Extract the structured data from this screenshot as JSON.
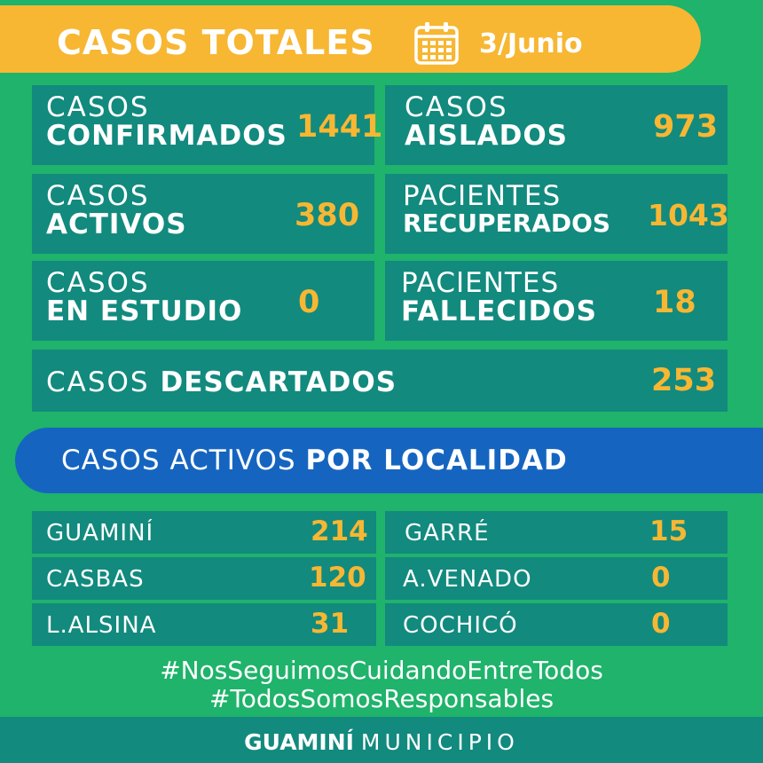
{
  "header": {
    "title": "CASOS TOTALES",
    "calendar_icon": "calendar-icon",
    "date": "3/Junio"
  },
  "cards": {
    "confirmados": {
      "l1": "CASOS",
      "l2": "CONFIRMADOS",
      "value": "1441"
    },
    "aislados": {
      "l1": "CASOS",
      "l2": "AISLADOS",
      "value": "973"
    },
    "activos": {
      "l1": "CASOS",
      "l2": "ACTIVOS",
      "value": "380"
    },
    "recuperados": {
      "l1": "PACIENTES",
      "l2": "RECUPERADOS",
      "value": "1043"
    },
    "estudio": {
      "l1": "CASOS",
      "l2": "EN ESTUDIO",
      "value": "0"
    },
    "fallecidos": {
      "l1": "PACIENTES",
      "l2": "FALLECIDOS",
      "value": "18"
    },
    "descartados": {
      "l1": "CASOS",
      "l2": "DESCARTADOS",
      "value": "253"
    }
  },
  "localidad_banner": {
    "light": "CASOS ACTIVOS",
    "bold": "POR LOCALIDAD"
  },
  "localidades": {
    "guamini": {
      "name": "GUAMINÍ",
      "value": "214"
    },
    "garre": {
      "name": "GARRÉ",
      "value": "15"
    },
    "casbas": {
      "name": "CASBAS",
      "value": "120"
    },
    "avenado": {
      "name": "A.VENADO",
      "value": "0"
    },
    "lalsina": {
      "name": "L.ALSINA",
      "value": "31"
    },
    "cochico": {
      "name": "COCHICÓ",
      "value": "0"
    }
  },
  "hashtags": [
    "#NosSeguimosCuidandoEntreTodos",
    "#TodosSomosResponsables"
  ],
  "footer": {
    "brand": "GUAMINÍ",
    "sub": "MUNICIPIO"
  },
  "colors": {
    "background": "#1fb36b",
    "card": "#128a7e",
    "accent": "#f7b733",
    "blue": "#1565c0"
  }
}
